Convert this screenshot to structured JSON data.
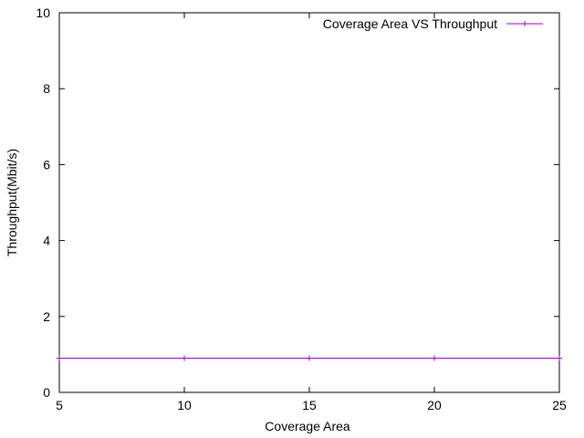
{
  "chart_data": {
    "type": "line",
    "xlabel": "Coverage Area",
    "ylabel": "Throughput(Mbit/s)",
    "xlim": [
      5,
      25
    ],
    "ylim": [
      0,
      10
    ],
    "xticks": [
      5,
      10,
      15,
      20,
      25
    ],
    "yticks": [
      0,
      2,
      4,
      6,
      8,
      10
    ],
    "grid": false,
    "legend_position": "top-right",
    "series": [
      {
        "name": "Coverage Area VS Throughput",
        "color": "#9400d3",
        "marker": "plus",
        "x": [
          5,
          10,
          15,
          20,
          25
        ],
        "y": [
          0.9,
          0.9,
          0.9,
          0.9,
          0.9
        ]
      }
    ]
  }
}
